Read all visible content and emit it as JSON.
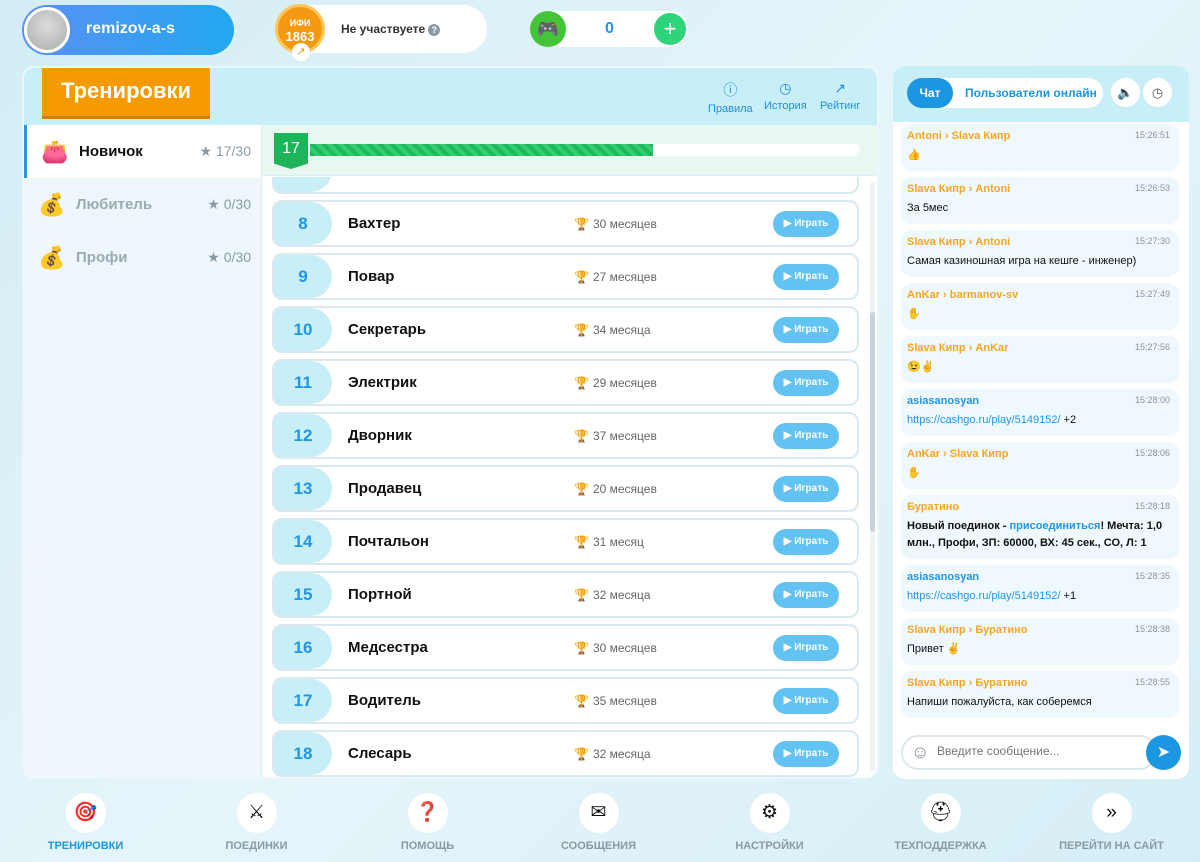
{
  "user": {
    "name": "remizov-a-s"
  },
  "rating": {
    "label": "ИФИ",
    "value": "1863",
    "status": "Не участвуете"
  },
  "games": {
    "count": "0"
  },
  "main": {
    "title": "Тренировки",
    "links": [
      {
        "label": "Правила",
        "icon": "info-icon"
      },
      {
        "label": "История",
        "icon": "history-icon"
      },
      {
        "label": "Рейтинг",
        "icon": "trend-icon"
      }
    ]
  },
  "levels": [
    {
      "name": "Новичок",
      "stars": "17/30",
      "active": true
    },
    {
      "name": "Любитель",
      "stars": "0/30"
    },
    {
      "name": "Профи",
      "stars": "0/30"
    }
  ],
  "progress": {
    "level": "17",
    "value": 17,
    "max": 30
  },
  "play_label": "Играть",
  "jobs": [
    {
      "n": "8",
      "name": "Вахтер",
      "months": "30 месяцев"
    },
    {
      "n": "9",
      "name": "Повар",
      "months": "27 месяцев"
    },
    {
      "n": "10",
      "name": "Секретарь",
      "months": "34 месяца"
    },
    {
      "n": "11",
      "name": "Электрик",
      "months": "29 месяцев"
    },
    {
      "n": "12",
      "name": "Дворник",
      "months": "37 месяцев"
    },
    {
      "n": "13",
      "name": "Продавец",
      "months": "20 месяцев"
    },
    {
      "n": "14",
      "name": "Почтальон",
      "months": "31 месяц"
    },
    {
      "n": "15",
      "name": "Портной",
      "months": "32 месяца"
    },
    {
      "n": "16",
      "name": "Медсестра",
      "months": "30 месяцев"
    },
    {
      "n": "17",
      "name": "Водитель",
      "months": "35 месяцев"
    },
    {
      "n": "18",
      "name": "Слесарь",
      "months": "32 месяца"
    }
  ],
  "chat": {
    "tab_chat": "Чат",
    "tab_online": "Пользователи онлайн",
    "placeholder": "Введите сообщение...",
    "messages": [
      {
        "from": "Antoni",
        "to": "Slava Кипр",
        "time": "15:26:51",
        "text": "👍"
      },
      {
        "from": "Slava Кипр",
        "to": "Antoni",
        "time": "15:26:53",
        "text": "За 5мес"
      },
      {
        "from": "Slava Кипр",
        "to": "Antoni",
        "time": "15:27:30",
        "text": "Самая казиношная игра на кешге - инженер)"
      },
      {
        "from": "AnKar",
        "to": "barmanov-sv",
        "time": "15:27:49",
        "text": "✋"
      },
      {
        "from": "Slava Кипр",
        "to": "AnKar",
        "time": "15:27:56",
        "text": "😉✌"
      },
      {
        "from": "asiasanosyan",
        "time": "15:28:00",
        "link": "https://cashgo.ru/play/5149152/",
        "text": " +2",
        "blue": true
      },
      {
        "from": "AnKar",
        "to": "Slava Кипр",
        "time": "15:28:06",
        "text": "✋"
      },
      {
        "from": "Буратино",
        "time": "15:28:18",
        "bold": true,
        "pre": "Новый поединок - ",
        "link": "присоединиться",
        "text": "! Мечта: 1,0 млн., Профи, ЗП: 60000, ВХ: 45 сек., СО, Л: 1"
      },
      {
        "from": "asiasanosyan",
        "time": "15:28:35",
        "link": "https://cashgo.ru/play/5149152/",
        "text": " +1",
        "blue": true
      },
      {
        "from": "Slava Кипр",
        "to": "Буратино",
        "time": "15:28:38",
        "text": "Привет ✌"
      },
      {
        "from": "Slava Кипр",
        "to": "Буратино",
        "time": "15:28:55",
        "text": "Напиши пожалуйста, как соберемся"
      }
    ]
  },
  "nav": [
    {
      "label": "ТРЕНИРОВКИ",
      "icon": "training-icon",
      "active": true
    },
    {
      "label": "ПОЕДИНКИ",
      "icon": "swords-icon"
    },
    {
      "label": "ПОМОЩЬ",
      "icon": "help-icon"
    },
    {
      "label": "СООБЩЕНИЯ",
      "icon": "envelope-icon"
    },
    {
      "label": "НАСТРОЙКИ",
      "icon": "gears-icon"
    },
    {
      "label": "ТЕХПОДДЕРЖКА",
      "icon": "lifebuoy-icon"
    },
    {
      "label": "ПЕРЕЙТИ НА САЙТ",
      "icon": "double-chevron-icon"
    }
  ],
  "colors": {
    "accent": "#1b96e0",
    "ribbon": "#f59a00",
    "progress": "#1fb85c",
    "username": "#f5a623"
  }
}
